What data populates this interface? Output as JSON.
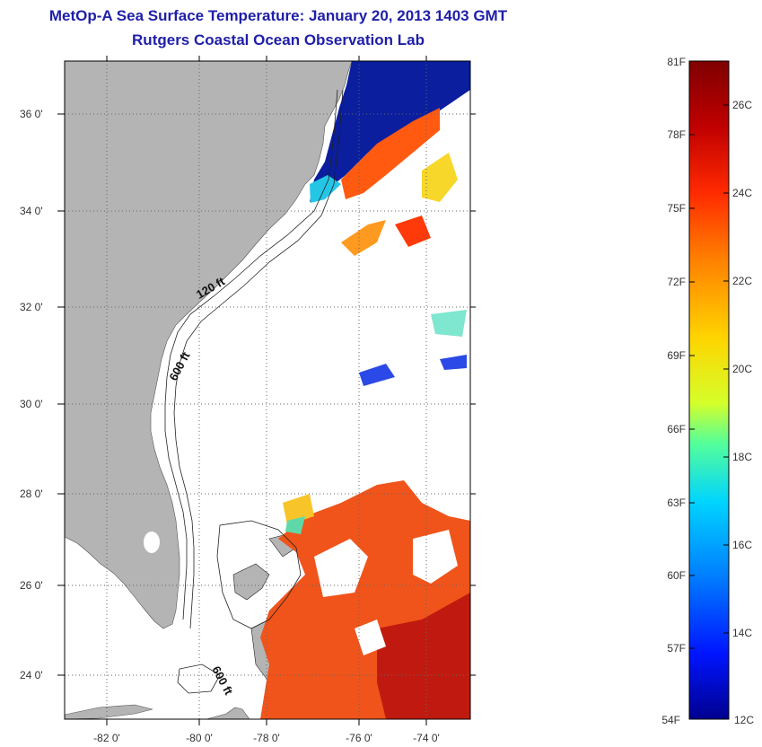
{
  "header": {
    "title": "MetOp-A Sea Surface Temperature:  January 20, 2013 1403 GMT",
    "subtitle": "Rutgers Coastal Ocean Observation Lab"
  },
  "map": {
    "lat_labels": [
      "36 0'",
      "34 0'",
      "32 0'",
      "30 0'",
      "28 0'",
      "26 0'",
      "24 0'"
    ],
    "lon_labels": [
      "-82 0'",
      "-80 0'",
      "-78 0'",
      "-76 0'",
      "-74 0'"
    ],
    "contour_labels": [
      "120 ft",
      "600 ft",
      "600 ft"
    ],
    "colors": {
      "land": "#b4b4b4",
      "frame": "#000000",
      "grid": "#666666"
    }
  },
  "colorbar": {
    "fahrenheit_labels": [
      "81F",
      "78F",
      "75F",
      "72F",
      "69F",
      "66F",
      "63F",
      "60F",
      "57F",
      "54F"
    ],
    "celsius_labels": [
      "26C",
      "24C",
      "22C",
      "20C",
      "18C",
      "16C",
      "14C",
      "12C"
    ],
    "gradient": [
      "#7f0000",
      "#c00000",
      "#ff2a00",
      "#ff7f00",
      "#ffd400",
      "#d4ff2a",
      "#55ff99",
      "#00d4ff",
      "#0080ff",
      "#0015ff",
      "#00008f"
    ]
  }
}
